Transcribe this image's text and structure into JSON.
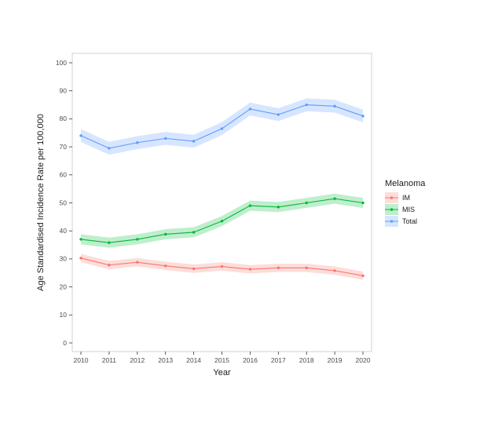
{
  "chart_data": {
    "type": "line",
    "title": "",
    "xlabel": "Year",
    "ylabel": "Age Standardised Incidence Rate per 100,000",
    "legend_title": "Melanoma",
    "legend_position": "right",
    "grid": false,
    "ylim": [
      0,
      100
    ],
    "yticks": [
      0,
      10,
      20,
      30,
      40,
      50,
      60,
      70,
      80,
      90,
      100
    ],
    "x": [
      2010,
      2011,
      2012,
      2013,
      2014,
      2015,
      2016,
      2017,
      2018,
      2019,
      2020
    ],
    "series": [
      {
        "name": "IM",
        "color": "#F8766D",
        "values": [
          30.3,
          27.8,
          28.8,
          27.5,
          26.5,
          27.3,
          26.3,
          26.8,
          26.8,
          25.8,
          24.0
        ],
        "ci": 1.5
      },
      {
        "name": "MIS",
        "color": "#00BA38",
        "values": [
          37.0,
          35.8,
          37.0,
          38.8,
          39.5,
          43.5,
          49.0,
          48.5,
          50.0,
          51.5,
          50.0
        ],
        "ci": 1.8
      },
      {
        "name": "Total",
        "color": "#619CFF",
        "values": [
          74.0,
          69.5,
          71.5,
          73.0,
          72.0,
          76.5,
          83.5,
          81.5,
          85.0,
          84.5,
          81.0
        ],
        "ci": 2.3
      }
    ]
  }
}
